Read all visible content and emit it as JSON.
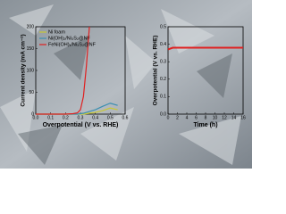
{
  "chart_data": [
    {
      "type": "line",
      "xlabel": "Overpotential (V vs. RHE)",
      "ylabel": "Current density (mA cm⁻²)",
      "x": [
        0,
        0.05,
        0.1,
        0.15,
        0.2,
        0.25,
        0.28,
        0.3,
        0.32,
        0.34,
        0.36,
        0.4,
        0.45,
        0.5,
        0.55
      ],
      "series": [
        {
          "name": "Ni foam",
          "color": "#c8c832",
          "values": [
            0,
            0,
            0,
            0,
            0,
            0,
            0,
            0,
            0,
            1,
            2,
            4,
            8,
            14,
            10
          ]
        },
        {
          "name": "Ni(OH)₂/Ni₃S₂@NF",
          "color": "#3a8fb0",
          "values": [
            0,
            0,
            0,
            0,
            0,
            0,
            0,
            1,
            2,
            4,
            6,
            10,
            18,
            25,
            20
          ]
        },
        {
          "name": "FeNi(OH)ₓ/Ni₃S₂@NF",
          "color": "#e02020",
          "values": [
            0,
            0,
            0,
            0,
            0,
            1,
            3,
            10,
            40,
            110,
            200,
            null,
            null,
            null,
            null
          ]
        }
      ],
      "xlim": [
        0,
        0.6
      ],
      "xticks": [
        {
          "value": 0,
          "label": "0.0"
        },
        0.1,
        0.2,
        0.3,
        0.4,
        0.5,
        0.6
      ],
      "ylim": [
        0,
        200
      ],
      "yticks": [
        0,
        50,
        100,
        150,
        200
      ],
      "legend": "upper-left"
    },
    {
      "type": "line",
      "xlabel": "Time (h)",
      "ylabel": "Overpotential (V vs. RHE)",
      "x": [
        0,
        1,
        2,
        3,
        4,
        5,
        6,
        7,
        8,
        9,
        10,
        11,
        12,
        13,
        14,
        15,
        16
      ],
      "series": [
        {
          "name": null,
          "color": "#e02020",
          "values": [
            0.37,
            0.38,
            0.38,
            0.38,
            0.38,
            0.38,
            0.38,
            0.38,
            0.38,
            0.38,
            0.38,
            0.38,
            0.38,
            0.38,
            0.38,
            0.38,
            0.38
          ]
        }
      ],
      "xlim": [
        0,
        16
      ],
      "xticks": [
        0,
        2,
        4,
        6,
        8,
        10,
        12,
        14,
        16
      ],
      "ylim": [
        0,
        0.5
      ],
      "yticks": [
        {
          "value": 0,
          "label": "0.0"
        },
        0.1,
        0.2,
        0.3,
        0.4,
        0.5
      ]
    }
  ]
}
